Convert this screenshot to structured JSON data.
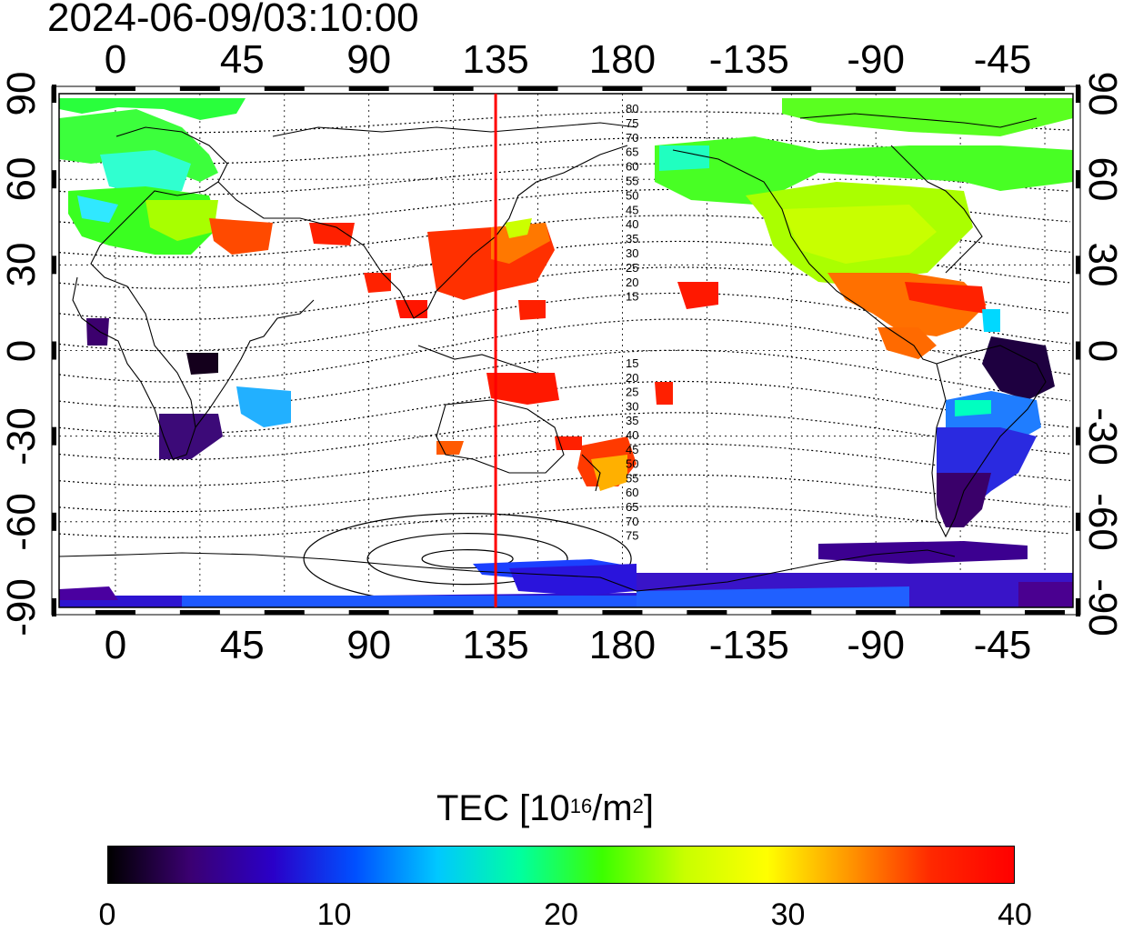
{
  "title": "2024-06-09/03:10:00",
  "map": {
    "x_ticks_top": [
      "0",
      "45",
      "90",
      "135",
      "180",
      "-135",
      "-90",
      "-45"
    ],
    "x_ticks_bottom": [
      "0",
      "45",
      "90",
      "135",
      "180",
      "-135",
      "-90",
      "-45"
    ],
    "y_ticks_left": [
      "90",
      "60",
      "30",
      "0",
      "-30",
      "-60",
      "-90"
    ],
    "y_ticks_right": [
      "90",
      "60",
      "30",
      "0",
      "-30",
      "-60",
      "-90"
    ],
    "meridian_marker_longitude": 135,
    "meridian_marker_color": "#ff0000",
    "contour_labels_north": [
      "80",
      "75",
      "70",
      "65",
      "60",
      "55",
      "50",
      "45",
      "40",
      "35",
      "30",
      "25",
      "20",
      "15"
    ],
    "contour_labels_south": [
      "15",
      "20",
      "25",
      "30",
      "35",
      "40",
      "45",
      "50",
      "55",
      "60",
      "65",
      "70",
      "75"
    ]
  },
  "colorbar": {
    "title_main": "TEC  [10",
    "title_sup1": "16",
    "title_mid": "/m",
    "title_sup2": "2",
    "title_end": "]",
    "ticks": [
      "0",
      "10",
      "20",
      "30",
      "40"
    ],
    "stops": [
      "#000000",
      "#3b0072",
      "#2a00c8",
      "#0050ff",
      "#00c8ff",
      "#00ffa0",
      "#3cff00",
      "#c8ff00",
      "#ffff00",
      "#ff9600",
      "#ff2800",
      "#ff0000"
    ]
  }
}
